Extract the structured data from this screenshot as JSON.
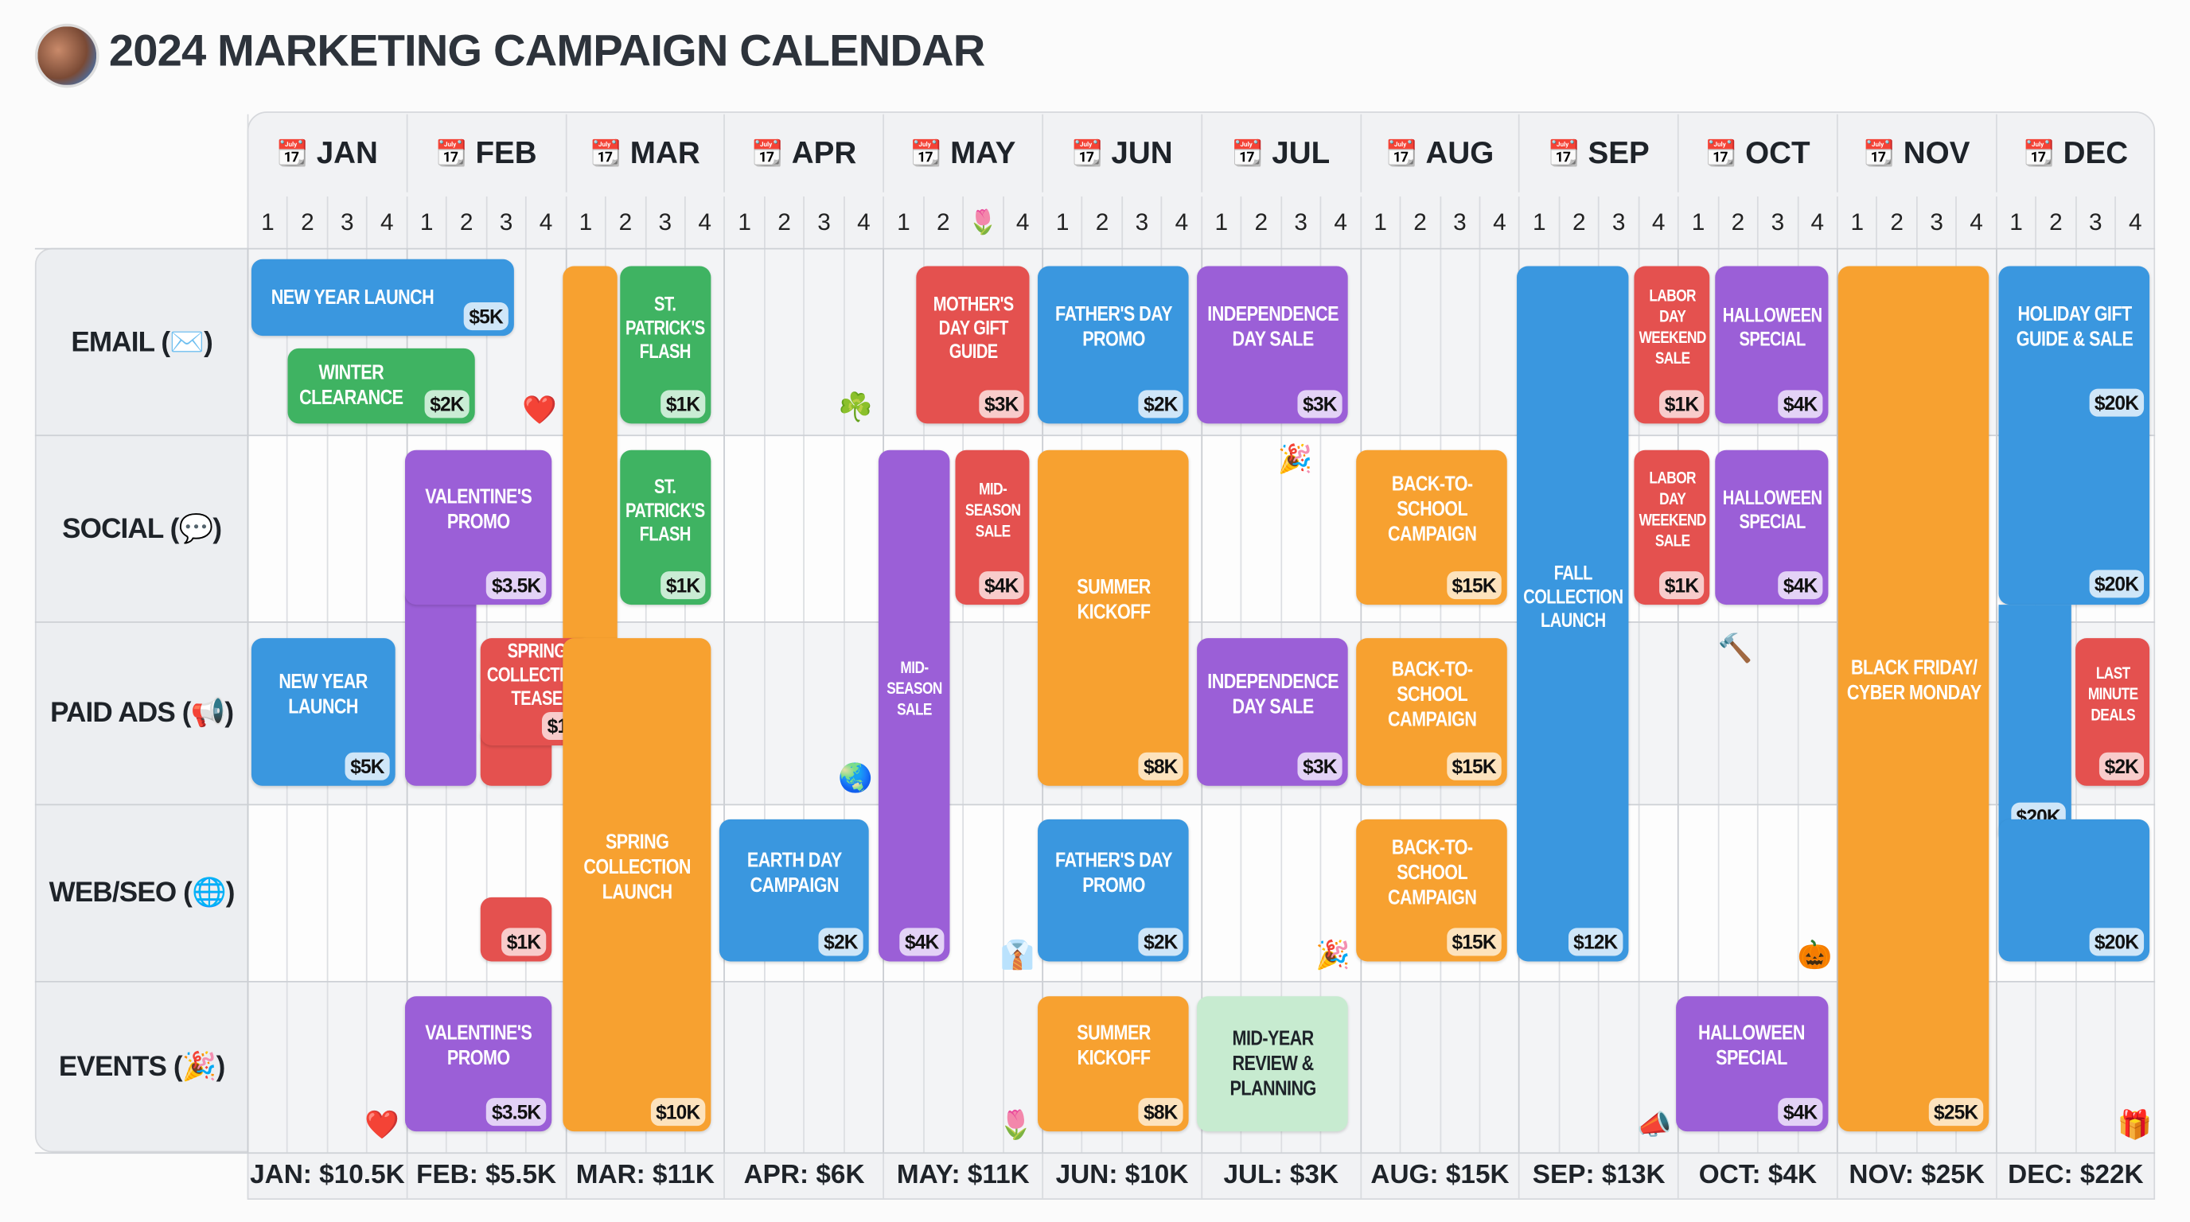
{
  "header": {
    "title": "2024 MARKETING CAMPAIGN CALENDAR",
    "avatar_icon": "team-photo-avatar"
  },
  "months": [
    "JAN",
    "FEB",
    "MAR",
    "APR",
    "MAY",
    "JUN",
    "JUL",
    "AUG",
    "SEP",
    "OCT",
    "NOV",
    "DEC"
  ],
  "month_icon": "📆",
  "weeks": [
    "1",
    "2",
    "3",
    "4"
  ],
  "week_marker": {
    "month": "MAY",
    "week": 3,
    "icon": "🌷"
  },
  "channels": [
    "EMAIL (✉️)",
    "SOCIAL (💬)",
    "PAID ADS (📢)",
    "WEB/SEO (🌐)",
    "EVENTS (🎉)"
  ],
  "colors": {
    "blue": "#3a97df",
    "green": "#3fb362",
    "orange": "#f7a130",
    "red": "#e4514f",
    "purple": "#9b5fd7",
    "mint": "#c7ebd0"
  },
  "blocks": [
    {
      "channel": "EMAIL",
      "label": "NEW YEAR LAUNCH",
      "budget": "$5K",
      "color": "blue"
    },
    {
      "channel": "EMAIL",
      "label": "WINTER CLEARANCE",
      "budget": "$2K",
      "color": "green"
    },
    {
      "channel": "EMAIL",
      "label": "ST. PATRICK'S FLASH",
      "budget": "$1K",
      "color": "green"
    },
    {
      "channel": "EMAIL",
      "label": "MOTHER'S DAY GIFT GUIDE",
      "budget": "$3K",
      "color": "red"
    },
    {
      "channel": "EMAIL",
      "label": "FATHER'S DAY PROMO",
      "budget": "$2K",
      "color": "blue"
    },
    {
      "channel": "EMAIL",
      "label": "INDEPENDENCE DAY SALE",
      "budget": "$3K",
      "color": "purple"
    },
    {
      "channel": "EMAIL",
      "label": "LABOR DAY WEEKEND SALE",
      "budget": "$1K",
      "color": "red"
    },
    {
      "channel": "EMAIL",
      "label": "HALLOWEEN SPECIAL",
      "budget": "$4K",
      "color": "purple"
    },
    {
      "channel": "EMAIL",
      "label": "HOLIDAY GIFT GUIDE & SALE",
      "budget": "$20K",
      "color": "blue"
    },
    {
      "channel": "SOCIAL",
      "label": "VALENTINE'S PROMO",
      "budget": "$3.5K",
      "color": "purple"
    },
    {
      "channel": "SOCIAL",
      "label": "ST. PATRICK'S FLASH",
      "budget": "$1K",
      "color": "green"
    },
    {
      "channel": "SOCIAL",
      "label": "MID-SEASON SALE",
      "budget": "$4K",
      "color": "red"
    },
    {
      "channel": "SOCIAL",
      "label": "SUMMER KICKOFF",
      "budget": "$8K",
      "color": "orange"
    },
    {
      "channel": "SOCIAL",
      "label": "BACK-TO-SCHOOL CAMPAIGN",
      "budget": "$15K",
      "color": "orange"
    },
    {
      "channel": "SOCIAL",
      "label": "LABOR DAY WEEKEND SALE",
      "budget": "$1K",
      "color": "red"
    },
    {
      "channel": "SOCIAL",
      "label": "HALLOWEEN SPECIAL",
      "budget": "$4K",
      "color": "purple"
    },
    {
      "channel": "SOCIAL",
      "label": "",
      "budget": "$20K",
      "color": "blue"
    },
    {
      "channel": "PAID ADS",
      "label": "NEW YEAR LAUNCH",
      "budget": "$5K",
      "color": "blue"
    },
    {
      "channel": "PAID ADS",
      "label": "SPRING COLLECTION TEASE",
      "budget": "$1K",
      "color": "red"
    },
    {
      "channel": "PAID ADS",
      "label": "MID-SEASON SALE",
      "budget": "$4K",
      "color": "purple"
    },
    {
      "channel": "PAID ADS",
      "label": "INDEPENDENCE DAY SALE",
      "budget": "$3K",
      "color": "purple"
    },
    {
      "channel": "PAID ADS",
      "label": "BACK-TO-SCHOOL CAMPAIGN",
      "budget": "$15K",
      "color": "orange"
    },
    {
      "channel": "PAID ADS",
      "label": "FALL COLLECTION LAUNCH",
      "budget": "$12K",
      "color": "blue"
    },
    {
      "channel": "PAID ADS",
      "label": "BLACK FRIDAY/ CYBER MONDAY",
      "budget": "$25K",
      "color": "orange"
    },
    {
      "channel": "PAID ADS",
      "label": "LAST MINUTE DEALS",
      "budget": "$2K",
      "color": "red"
    },
    {
      "channel": "WEB/SEO",
      "label": "SPRING COLLECTION LAUNCH",
      "budget": "$10K",
      "color": "orange"
    },
    {
      "channel": "WEB/SEO",
      "label": "EARTH DAY CAMPAIGN",
      "budget": "$2K",
      "color": "blue"
    },
    {
      "channel": "WEB/SEO",
      "label": "",
      "budget": "$1K",
      "color": "red"
    },
    {
      "channel": "WEB/SEO",
      "label": "FATHER'S DAY PROMO",
      "budget": "$2K",
      "color": "blue"
    },
    {
      "channel": "WEB/SEO",
      "label": "BACK-TO-SCHOOL CAMPAIGN",
      "budget": "$15K",
      "color": "orange"
    },
    {
      "channel": "WEB/SEO",
      "label": "",
      "budget": "$20K",
      "color": "blue"
    },
    {
      "channel": "EVENTS",
      "label": "VALENTINE'S PROMO",
      "budget": "$3.5K",
      "color": "purple"
    },
    {
      "channel": "EVENTS",
      "label": "SUMMER KICKOFF",
      "budget": "$8K",
      "color": "orange"
    },
    {
      "channel": "EVENTS",
      "label": "MID-YEAR REVIEW & PLANNING",
      "budget": "",
      "color": "mint"
    },
    {
      "channel": "EVENTS",
      "label": "HALLOWEEN SPECIAL",
      "budget": "$4K",
      "color": "purple"
    }
  ],
  "decorations": [
    {
      "name": "heart-icon",
      "glyph": "❤️"
    },
    {
      "name": "heart-icon",
      "glyph": "❤️"
    },
    {
      "name": "shamrock-icon",
      "glyph": "☘️"
    },
    {
      "name": "globe-icon",
      "glyph": "🌏"
    },
    {
      "name": "tulip-icon",
      "glyph": "🌷"
    },
    {
      "name": "necktie-icon",
      "glyph": "👔"
    },
    {
      "name": "party-popper-icon",
      "glyph": "🎉"
    },
    {
      "name": "party-popper-icon",
      "glyph": "🎉"
    },
    {
      "name": "hammer-icon",
      "glyph": "🔨"
    },
    {
      "name": "pumpkin-icon",
      "glyph": "🎃"
    },
    {
      "name": "megaphone-icon",
      "glyph": "📣"
    },
    {
      "name": "gift-icon",
      "glyph": "🎁"
    }
  ],
  "totals": [
    "JAN: $10.5K",
    "FEB: $5.5K",
    "MAR: $11K",
    "APR: $6K",
    "MAY: $11K",
    "JUN: $10K",
    "JUL: $3K",
    "AUG: $15K",
    "SEP: $13K",
    "OCT: $4K",
    "NOV: $25K",
    "DEC: $22K"
  ]
}
